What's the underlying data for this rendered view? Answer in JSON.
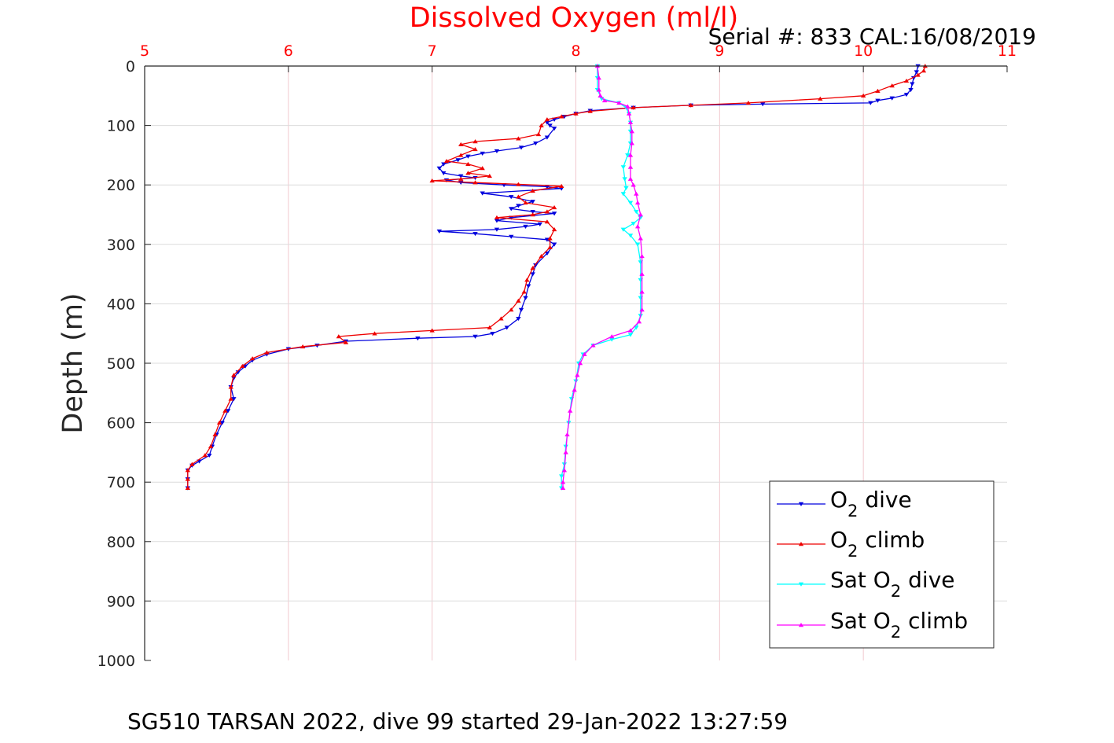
{
  "chart_data": {
    "type": "line",
    "title": "Dissolved Oxygen (ml/l)",
    "subtitle": "Serial #: 833  CAL:16/08/2019",
    "footer": "SG510 TARSAN 2022, dive 99 started 29-Jan-2022 13:27:59",
    "xlabel": "",
    "ylabel": "Depth (m)",
    "xlim": [
      5,
      11
    ],
    "ylim": [
      0,
      1000
    ],
    "y_reversed": true,
    "x_axis_position": "top",
    "x_ticks": [
      "5",
      "6",
      "7",
      "8",
      "9",
      "10",
      "11"
    ],
    "y_ticks": [
      "0",
      "100",
      "200",
      "300",
      "400",
      "500",
      "600",
      "700",
      "800",
      "900",
      "1000"
    ],
    "grid": true,
    "legend": "bottom-right",
    "colors": {
      "title": "#ff0000",
      "xtick": "#ff0000",
      "grid": "#f2c9cf",
      "axis": "#262626"
    },
    "series": [
      {
        "name_parts": [
          "O",
          "2",
          " dive"
        ],
        "color": "#0000dd",
        "marker": "down-triangle",
        "points": [
          [
            10.38,
            0
          ],
          [
            10.37,
            10
          ],
          [
            10.35,
            20
          ],
          [
            10.34,
            30
          ],
          [
            10.33,
            40
          ],
          [
            10.3,
            48
          ],
          [
            10.2,
            54
          ],
          [
            10.1,
            58
          ],
          [
            10.05,
            62
          ],
          [
            9.3,
            64
          ],
          [
            8.8,
            66
          ],
          [
            8.4,
            70
          ],
          [
            8.1,
            75
          ],
          [
            8.0,
            80
          ],
          [
            7.92,
            85
          ],
          [
            7.85,
            90
          ],
          [
            7.8,
            95
          ],
          [
            7.82,
            100
          ],
          [
            7.85,
            105
          ],
          [
            7.8,
            120
          ],
          [
            7.72,
            130
          ],
          [
            7.62,
            137
          ],
          [
            7.45,
            143
          ],
          [
            7.35,
            147
          ],
          [
            7.25,
            152
          ],
          [
            7.18,
            158
          ],
          [
            7.08,
            165
          ],
          [
            7.05,
            172
          ],
          [
            7.08,
            180
          ],
          [
            7.2,
            185
          ],
          [
            7.3,
            188
          ],
          [
            7.1,
            192
          ],
          [
            7.2,
            196
          ],
          [
            7.5,
            200
          ],
          [
            7.8,
            203
          ],
          [
            7.9,
            206
          ],
          [
            7.35,
            214
          ],
          [
            7.55,
            220
          ],
          [
            7.7,
            228
          ],
          [
            7.6,
            235
          ],
          [
            7.55,
            240
          ],
          [
            7.7,
            245
          ],
          [
            7.85,
            248
          ],
          [
            7.55,
            255
          ],
          [
            7.45,
            260
          ],
          [
            7.75,
            266
          ],
          [
            7.65,
            270
          ],
          [
            7.45,
            275
          ],
          [
            7.05,
            278
          ],
          [
            7.3,
            282
          ],
          [
            7.55,
            287
          ],
          [
            7.8,
            292
          ],
          [
            7.85,
            300
          ],
          [
            7.8,
            315
          ],
          [
            7.72,
            335
          ],
          [
            7.7,
            350
          ],
          [
            7.67,
            370
          ],
          [
            7.65,
            390
          ],
          [
            7.62,
            410
          ],
          [
            7.6,
            425
          ],
          [
            7.52,
            440
          ],
          [
            7.42,
            450
          ],
          [
            7.3,
            455
          ],
          [
            6.9,
            458
          ],
          [
            6.4,
            463
          ],
          [
            6.2,
            470
          ],
          [
            6.0,
            476
          ],
          [
            5.85,
            485
          ],
          [
            5.75,
            495
          ],
          [
            5.7,
            505
          ],
          [
            5.65,
            515
          ],
          [
            5.62,
            525
          ],
          [
            5.6,
            540
          ],
          [
            5.62,
            560
          ],
          [
            5.58,
            580
          ],
          [
            5.54,
            600
          ],
          [
            5.5,
            620
          ],
          [
            5.47,
            640
          ],
          [
            5.45,
            655
          ],
          [
            5.38,
            665
          ],
          [
            5.33,
            672
          ],
          [
            5.3,
            680
          ],
          [
            5.3,
            695
          ],
          [
            5.3,
            710
          ]
        ]
      },
      {
        "name_parts": [
          "O",
          "2",
          " climb"
        ],
        "color": "#ee0000",
        "marker": "up-triangle",
        "points": [
          [
            10.43,
            0
          ],
          [
            10.42,
            8
          ],
          [
            10.38,
            15
          ],
          [
            10.3,
            25
          ],
          [
            10.2,
            33
          ],
          [
            10.1,
            42
          ],
          [
            10.0,
            50
          ],
          [
            9.7,
            55
          ],
          [
            9.2,
            62
          ],
          [
            8.8,
            66
          ],
          [
            8.4,
            70
          ],
          [
            8.1,
            76
          ],
          [
            8.0,
            80
          ],
          [
            7.9,
            85
          ],
          [
            7.8,
            90
          ],
          [
            7.76,
            100
          ],
          [
            7.74,
            115
          ],
          [
            7.6,
            122
          ],
          [
            7.3,
            127
          ],
          [
            7.2,
            132
          ],
          [
            7.3,
            140
          ],
          [
            7.2,
            150
          ],
          [
            7.1,
            160
          ],
          [
            7.25,
            165
          ],
          [
            7.35,
            172
          ],
          [
            7.25,
            180
          ],
          [
            7.4,
            185
          ],
          [
            7.2,
            190
          ],
          [
            7.0,
            193
          ],
          [
            7.3,
            196
          ],
          [
            7.6,
            199
          ],
          [
            7.9,
            202
          ],
          [
            7.7,
            210
          ],
          [
            7.6,
            220
          ],
          [
            7.65,
            230
          ],
          [
            7.85,
            238
          ],
          [
            7.8,
            245
          ],
          [
            7.7,
            250
          ],
          [
            7.45,
            255
          ],
          [
            7.8,
            262
          ],
          [
            7.85,
            275
          ],
          [
            7.82,
            290
          ],
          [
            7.82,
            305
          ],
          [
            7.76,
            320
          ],
          [
            7.7,
            340
          ],
          [
            7.66,
            360
          ],
          [
            7.64,
            380
          ],
          [
            7.6,
            395
          ],
          [
            7.55,
            410
          ],
          [
            7.48,
            425
          ],
          [
            7.4,
            440
          ],
          [
            7.0,
            445
          ],
          [
            6.6,
            450
          ],
          [
            6.35,
            455
          ],
          [
            6.4,
            465
          ],
          [
            6.1,
            472
          ],
          [
            5.85,
            482
          ],
          [
            5.75,
            492
          ],
          [
            5.68,
            505
          ],
          [
            5.62,
            520
          ],
          [
            5.6,
            540
          ],
          [
            5.6,
            560
          ],
          [
            5.56,
            580
          ],
          [
            5.52,
            600
          ],
          [
            5.49,
            620
          ],
          [
            5.46,
            640
          ],
          [
            5.42,
            655
          ],
          [
            5.33,
            670
          ],
          [
            5.3,
            680
          ],
          [
            5.3,
            695
          ],
          [
            5.3,
            710
          ]
        ]
      },
      {
        "name_parts": [
          "Sat O",
          "2",
          " dive"
        ],
        "color": "#00ffff",
        "marker": "down-triangle",
        "points": [
          [
            8.15,
            0
          ],
          [
            8.15,
            20
          ],
          [
            8.15,
            40
          ],
          [
            8.18,
            55
          ],
          [
            8.3,
            62
          ],
          [
            8.35,
            70
          ],
          [
            8.37,
            80
          ],
          [
            8.38,
            95
          ],
          [
            8.38,
            110
          ],
          [
            8.38,
            130
          ],
          [
            8.36,
            150
          ],
          [
            8.33,
            170
          ],
          [
            8.34,
            190
          ],
          [
            8.35,
            205
          ],
          [
            8.33,
            215
          ],
          [
            8.38,
            230
          ],
          [
            8.42,
            245
          ],
          [
            8.45,
            255
          ],
          [
            8.4,
            265
          ],
          [
            8.33,
            275
          ],
          [
            8.38,
            285
          ],
          [
            8.43,
            300
          ],
          [
            8.45,
            330
          ],
          [
            8.45,
            360
          ],
          [
            8.45,
            390
          ],
          [
            8.45,
            420
          ],
          [
            8.42,
            440
          ],
          [
            8.38,
            452
          ],
          [
            8.25,
            460
          ],
          [
            8.12,
            470
          ],
          [
            8.05,
            485
          ],
          [
            8.02,
            500
          ],
          [
            8.0,
            530
          ],
          [
            7.97,
            560
          ],
          [
            7.95,
            600
          ],
          [
            7.93,
            640
          ],
          [
            7.92,
            670
          ],
          [
            7.9,
            690
          ],
          [
            7.9,
            710
          ]
        ]
      },
      {
        "name_parts": [
          "Sat O",
          "2",
          " climb"
        ],
        "color": "#ff00ff",
        "marker": "up-triangle",
        "points": [
          [
            8.15,
            0
          ],
          [
            8.16,
            20
          ],
          [
            8.16,
            40
          ],
          [
            8.17,
            50
          ],
          [
            8.2,
            58
          ],
          [
            8.3,
            62
          ],
          [
            8.36,
            68
          ],
          [
            8.37,
            80
          ],
          [
            8.38,
            95
          ],
          [
            8.39,
            110
          ],
          [
            8.39,
            130
          ],
          [
            8.38,
            150
          ],
          [
            8.38,
            170
          ],
          [
            8.38,
            190
          ],
          [
            8.4,
            200
          ],
          [
            8.42,
            215
          ],
          [
            8.43,
            230
          ],
          [
            8.45,
            250
          ],
          [
            8.43,
            270
          ],
          [
            8.45,
            290
          ],
          [
            8.46,
            320
          ],
          [
            8.46,
            350
          ],
          [
            8.46,
            380
          ],
          [
            8.46,
            410
          ],
          [
            8.44,
            430
          ],
          [
            8.38,
            445
          ],
          [
            8.25,
            455
          ],
          [
            8.12,
            470
          ],
          [
            8.06,
            485
          ],
          [
            8.03,
            500
          ],
          [
            8.01,
            520
          ],
          [
            7.99,
            545
          ],
          [
            7.96,
            580
          ],
          [
            7.94,
            620
          ],
          [
            7.93,
            650
          ],
          [
            7.92,
            680
          ],
          [
            7.91,
            700
          ],
          [
            7.91,
            710
          ]
        ]
      }
    ]
  }
}
